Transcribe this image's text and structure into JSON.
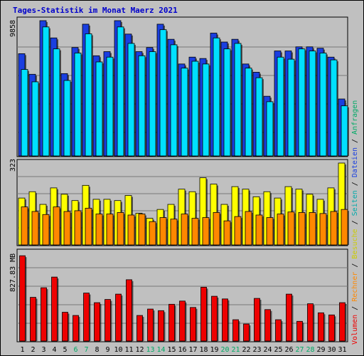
{
  "chart_data": {
    "title": "Tages-Statistik im Monat Maerz 2021",
    "days": [
      "1",
      "2",
      "3",
      "4",
      "5",
      "6",
      "7",
      "8",
      "9",
      "10",
      "11",
      "12",
      "13",
      "14",
      "15",
      "16",
      "17",
      "18",
      "19",
      "20",
      "21",
      "22",
      "23",
      "24",
      "25",
      "26",
      "27",
      "28",
      "29",
      "30",
      "31"
    ],
    "weekend_days": [
      "6",
      "7",
      "13",
      "14",
      "20",
      "21",
      "27",
      "28"
    ],
    "colors": {
      "title": "#0000cc",
      "anfragen": "#1a3fe0",
      "dateien": "#00e0ff",
      "seiten": "#00aaaa",
      "besuche": "#ffff00",
      "rechner": "#ff8800",
      "volumen": "#ee0000",
      "weekend": "#00aa66",
      "axis_label": "#000000"
    },
    "panels": [
      {
        "type": "bar",
        "ylabel": "9858",
        "ymax": 9858,
        "series": [
          {
            "name": "Anfragen",
            "values": [
              7450,
              5950,
              9858,
              8600,
              6000,
              7900,
              9600,
              7300,
              7600,
              9858,
              8880,
              7600,
              7900,
              9600,
              8500,
              6700,
              7200,
              7100,
              8950,
              8300,
              8500,
              6700,
              6100,
              4350,
              7650,
              7650,
              7950,
              7950,
              7850,
              7200,
              4150
            ]
          },
          {
            "name": "Dateien",
            "values": [
              6300,
              5400,
              9400,
              7800,
              5500,
              7500,
              8900,
              6850,
              7200,
              9400,
              8200,
              7300,
              7600,
              9200,
              8100,
              6400,
              6900,
              6700,
              8600,
              7800,
              8200,
              6400,
              5700,
              3950,
              7200,
              7050,
              7800,
              7650,
              7500,
              7000,
              3650
            ]
          }
        ]
      },
      {
        "type": "bar",
        "ylabel": "323",
        "ymax": 323,
        "series": [
          {
            "name": "Besuche",
            "values": [
              185,
              210,
              160,
              225,
              200,
              175,
              235,
              180,
              180,
              175,
              195,
              125,
              105,
              140,
              160,
              220,
              210,
              265,
              240,
              160,
              230,
              220,
              190,
              210,
              185,
              230,
              220,
              200,
              180,
              225,
              323
            ]
          },
          {
            "name": "Rechner",
            "values": [
              150,
              132,
              120,
              150,
              132,
              135,
              145,
              122,
              122,
              128,
              118,
              122,
              92,
              108,
              102,
              122,
              105,
              108,
              128,
              95,
              112,
              132,
              118,
              108,
              122,
              130,
              128,
              128,
              124,
              132,
              140
            ]
          }
        ]
      },
      {
        "type": "bar",
        "ylabel": "827.83 MB",
        "ymax": 827.83,
        "series": [
          {
            "name": "Volumen",
            "values": [
              800,
              410,
              500,
              600,
              270,
              240,
              450,
              360,
              390,
              440,
              575,
              240,
              300,
              285,
              345,
              375,
              315,
              505,
              420,
              395,
              200,
              160,
              400,
              295,
              200,
              440,
              185,
              350,
              265,
              245,
              360
            ]
          }
        ]
      }
    ],
    "right_legend": {
      "volumen": "Volumen",
      "rechner": "Rechner",
      "besuche": "Besuche",
      "seiten": "Seiten",
      "dateien": "Dateien",
      "anfragen": "Anfragen",
      "separator": " / "
    }
  }
}
